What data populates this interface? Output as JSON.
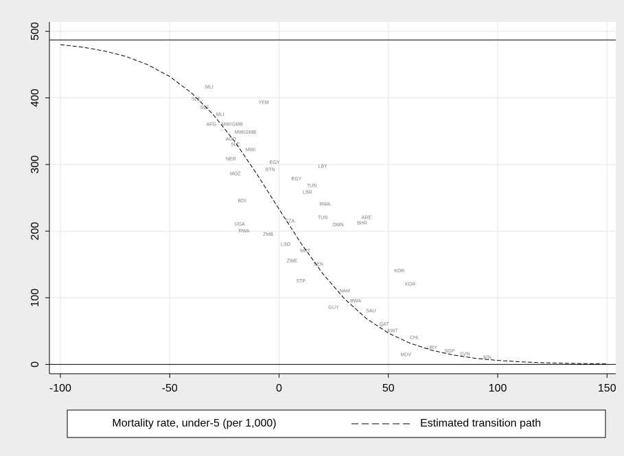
{
  "chart_data": {
    "type": "scatter",
    "xlim": [
      -105,
      154
    ],
    "ylim": [
      -14,
      514
    ],
    "xticks": [
      -100,
      -50,
      0,
      50,
      100,
      150
    ],
    "yticks": [
      0,
      100,
      200,
      300,
      400,
      500
    ],
    "grid": true,
    "reference_lines": [
      0,
      487
    ],
    "legend": "bottom",
    "series": [
      {
        "name": "Mortality rate, under-5 (per 1,000)",
        "color": "#808080",
        "mode": "labels",
        "labels": [
          "MLI",
          "YEM",
          "SLE",
          "SLE",
          "MLI",
          "AFG",
          "MWI",
          "GMB",
          "MWI",
          "GMB",
          "AGO",
          "SLE",
          "MWI",
          "NER",
          "EGY",
          "LBY",
          "BTN",
          "MOZ",
          "EGY",
          "TUN",
          "LBR",
          "RWA",
          "TUN",
          "ARE",
          "BHR",
          "OMN",
          "UGA",
          "RWA",
          "ZMB",
          "ZWE",
          "STP",
          "KOR",
          "KOR",
          "GUY",
          "MDV",
          "BDI",
          "TZA",
          "LSO",
          "MRT",
          "SEN",
          "NAM",
          "BWA",
          "SAU",
          "QAT",
          "KWT",
          "CHL",
          "URY",
          "SGP",
          "SVN",
          "JPN"
        ],
        "x": [
          -32,
          -7,
          -38,
          -34,
          -27,
          -31,
          -24,
          -19,
          -18,
          -13,
          -22,
          -20,
          -13,
          -22,
          -2,
          20,
          -4,
          -20,
          8,
          15,
          13,
          21,
          20,
          40,
          38,
          27,
          -18,
          -16,
          -5,
          6,
          10,
          55,
          60,
          25,
          58,
          -17,
          5,
          3,
          12,
          18,
          30,
          35,
          42,
          48,
          52,
          62,
          70,
          78,
          85,
          95
        ],
        "values": [
          416,
          393,
          398,
          385,
          375,
          360,
          360,
          360,
          348,
          348,
          338,
          330,
          322,
          308,
          303,
          297,
          292,
          286,
          278,
          268,
          258,
          240,
          220,
          220,
          212,
          209,
          210,
          200,
          195,
          155,
          125,
          140,
          120,
          85,
          14,
          245,
          215,
          180,
          170,
          150,
          110,
          95,
          80,
          60,
          50,
          40,
          25,
          20,
          15,
          10
        ]
      },
      {
        "name": "Estimated transition path",
        "color": "#000000",
        "mode": "dashed-line",
        "x": [
          -100,
          -90,
          -80,
          -70,
          -60,
          -50,
          -40,
          -30,
          -20,
          -10,
          0,
          10,
          20,
          30,
          40,
          50,
          60,
          70,
          80,
          90,
          100,
          110,
          120,
          130,
          140,
          150
        ],
        "values": [
          479.9,
          476.2,
          470.6,
          462.2,
          449.8,
          432.1,
          407.5,
          374.6,
          333.3,
          285.0,
          233.0,
          182.1,
          136.2,
          98.2,
          68.7,
          47.0,
          31.7,
          21.1,
          13.9,
          9.1,
          6.0,
          3.9,
          2.6,
          1.7,
          1.1,
          0.7
        ]
      }
    ]
  }
}
